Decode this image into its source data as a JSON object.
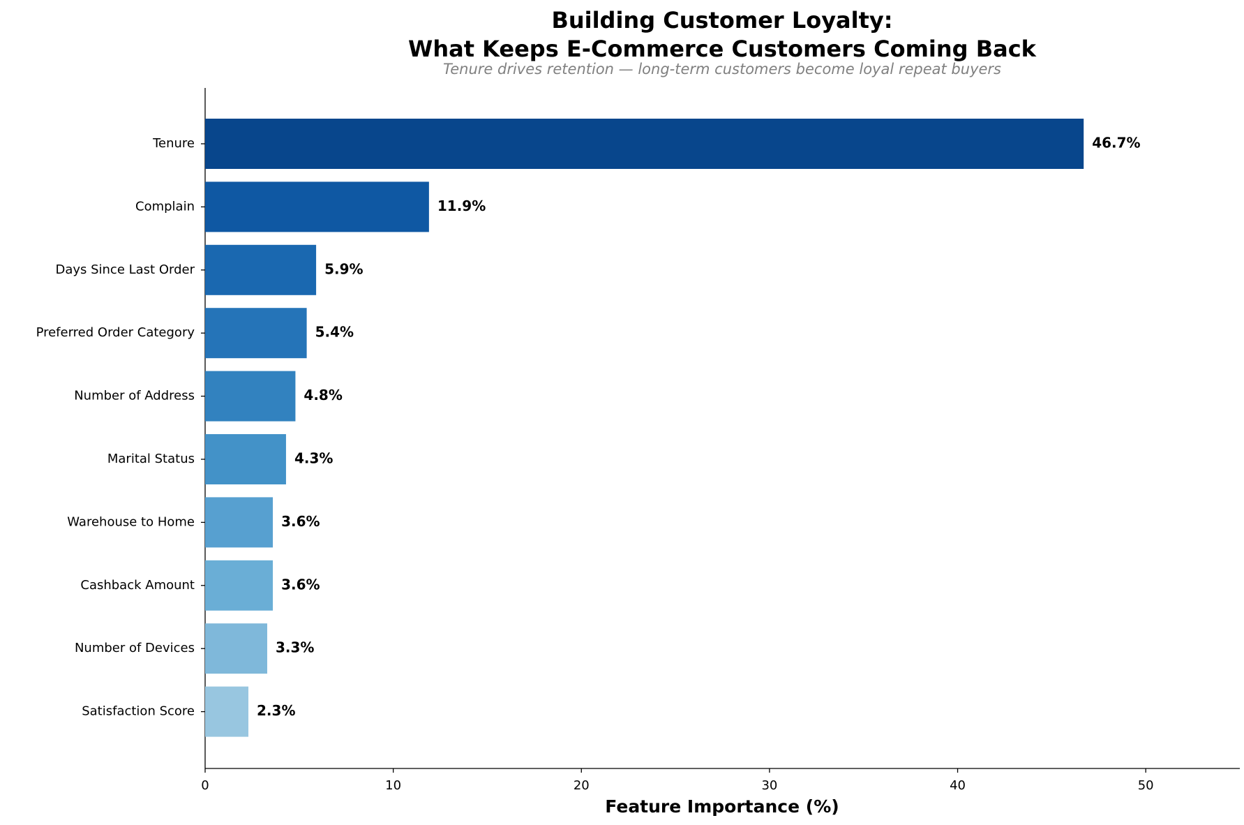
{
  "chart_data": {
    "type": "bar",
    "orientation": "horizontal",
    "title": [
      "Building Customer Loyalty:",
      "What Keeps E-Commerce Customers Coming Back"
    ],
    "subtitle": "Tenure drives retention — long-term customers become loyal repeat buyers",
    "x_label": "Feature Importance (%)",
    "categories": [
      "Tenure",
      "Complain",
      "Days Since Last Order",
      "Preferred Order Category",
      "Number of Address",
      "Marital Status",
      "Warehouse to Home",
      "Cashback Amount",
      "Number of Devices",
      "Satisfaction Score"
    ],
    "values": [
      46.7,
      11.9,
      5.9,
      5.4,
      4.8,
      4.3,
      3.6,
      3.6,
      3.3,
      2.3
    ],
    "value_labels": [
      "46.7%",
      "11.9%",
      "5.9%",
      "5.4%",
      "4.8%",
      "4.3%",
      "3.6%",
      "3.6%",
      "3.3%",
      "2.3%"
    ],
    "colors": [
      "#08468c",
      "#0f58a3",
      "#1a68b0",
      "#2574b8",
      "#3282bf",
      "#4392c8",
      "#57a0d0",
      "#6aaed6",
      "#7fb8da",
      "#98c6e0"
    ],
    "xlim": [
      0,
      55
    ],
    "xticks": [
      0,
      10,
      20,
      30,
      40,
      50
    ],
    "grid": false
  }
}
